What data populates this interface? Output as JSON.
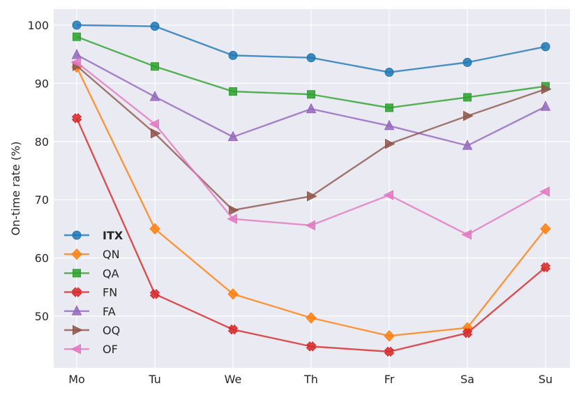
{
  "chart_data": {
    "type": "line",
    "title": "",
    "xlabel": "",
    "ylabel": "On-time rate (%)",
    "categories": [
      "Mo",
      "Tu",
      "We",
      "Th",
      "Fr",
      "Sa",
      "Su"
    ],
    "yticks": [
      50,
      60,
      70,
      80,
      90,
      100
    ],
    "ylim": [
      42,
      102
    ],
    "grid": true,
    "legend_position": "lower-left",
    "series": [
      {
        "name": "ITX",
        "color": "#1f77b4",
        "marker": "circle",
        "bold": true,
        "values": [
          100.0,
          99.8,
          94.8,
          94.4,
          91.9,
          93.6,
          96.3
        ]
      },
      {
        "name": "QN",
        "color": "#ff7f0e",
        "marker": "diamond",
        "values": [
          92.8,
          65.0,
          53.8,
          49.7,
          46.6,
          48.0,
          65.0
        ]
      },
      {
        "name": "QA",
        "color": "#2ca02c",
        "marker": "square",
        "values": [
          98.0,
          92.9,
          88.6,
          88.1,
          85.8,
          87.6,
          89.5
        ]
      },
      {
        "name": "FN",
        "color": "#d62728",
        "marker": "x",
        "values": [
          84.0,
          53.8,
          47.7,
          44.8,
          43.9,
          47.1,
          58.4
        ]
      },
      {
        "name": "FA",
        "color": "#9467bd",
        "marker": "triangle-up",
        "values": [
          94.9,
          87.7,
          80.8,
          85.6,
          82.7,
          79.3,
          86.0
        ]
      },
      {
        "name": "OQ",
        "color": "#8c564b",
        "marker": "triangle-right",
        "values": [
          93.0,
          81.4,
          68.2,
          70.6,
          79.6,
          84.4,
          89.0
        ]
      },
      {
        "name": "OF",
        "color": "#e377c2",
        "marker": "triangle-left",
        "values": [
          93.6,
          83.0,
          66.7,
          65.6,
          70.8,
          64.0,
          71.4
        ]
      }
    ]
  }
}
